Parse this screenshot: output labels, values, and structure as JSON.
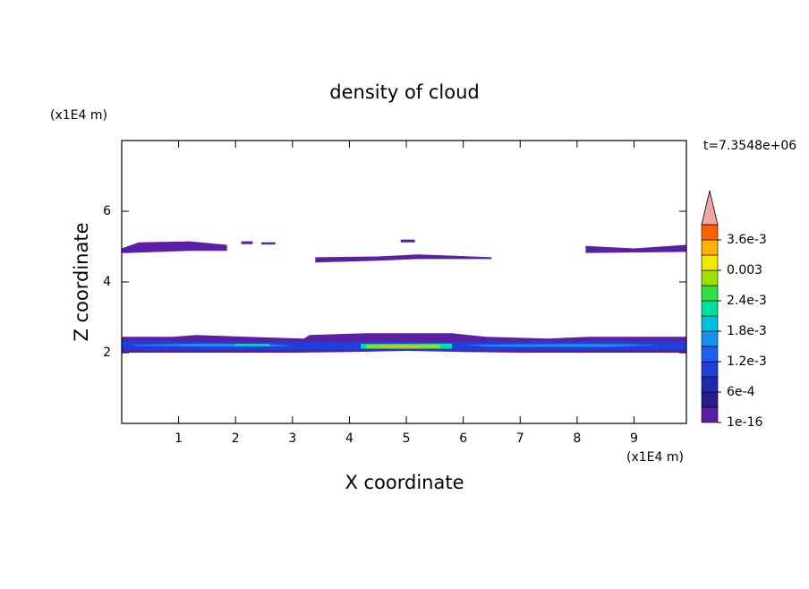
{
  "chart_data": {
    "type": "contour",
    "title": "density of cloud",
    "xlabel": "X coordinate",
    "ylabel": "Z coordinate",
    "xunit": "(x1E4 m)",
    "yunit": "(x1E4 m)",
    "annotation": "t=7.3548e+06",
    "xlim": [
      0,
      9.92
    ],
    "ylim": [
      0,
      8
    ],
    "xticks": [
      1,
      2,
      3,
      4,
      5,
      6,
      7,
      8,
      9
    ],
    "yticks": [
      2,
      4,
      6
    ],
    "colorbar": {
      "levels": [
        1e-16,
        0.0003,
        0.0006,
        0.0009,
        0.0012,
        0.0015,
        0.0018,
        0.0021,
        0.0024,
        0.0027,
        0.003,
        0.0033,
        0.0036,
        0.0039
      ],
      "colors": [
        "#5b1fa6",
        "#2a1a8c",
        "#1c2ab0",
        "#1f3fd8",
        "#2060f0",
        "#1890f0",
        "#00c0e0",
        "#00e0a0",
        "#30e040",
        "#a0e000",
        "#f0e800",
        "#ffb000",
        "#ff6000"
      ],
      "extend_color": "#f4a6a6",
      "ticks": [
        1e-16,
        {
          "value": 0.0006,
          "label": "6e-4"
        },
        {
          "value": 0.0012,
          "label": "1.2e-3"
        },
        {
          "value": 0.0018,
          "label": "1.8e-3"
        },
        {
          "value": 0.0024,
          "label": "2.4e-3"
        },
        0.003,
        {
          "value": 0.0036,
          "label": "3.6e-3"
        }
      ]
    },
    "regions": [
      {
        "level": 1e-16,
        "x": [
          0,
          0.9,
          1.3,
          2.2,
          3.2,
          3.3,
          4.3,
          5.8,
          6.4,
          7.5,
          8.2,
          9.92,
          9.92,
          7,
          6,
          5,
          4,
          3,
          2,
          1,
          0
        ],
        "z": [
          2.45,
          2.45,
          2.5,
          2.45,
          2.4,
          2.5,
          2.55,
          2.55,
          2.45,
          2.4,
          2.45,
          2.45,
          2.0,
          2.0,
          2.02,
          2.05,
          2.02,
          2.0,
          2.0,
          2.0,
          2.0
        ]
      },
      {
        "level": 0.0009,
        "x": [
          0,
          2,
          3.5,
          4.2,
          5.8,
          7,
          9.92,
          9.92,
          7,
          5.8,
          4.2,
          2,
          0
        ],
        "z": [
          2.35,
          2.3,
          2.32,
          2.3,
          2.3,
          2.32,
          2.33,
          2.08,
          2.08,
          2.07,
          2.07,
          2.08,
          2.08
        ]
      },
      {
        "level": 0.0015,
        "x": [
          0.2,
          1.5,
          2.5,
          3,
          2.5,
          1.5,
          0.2
        ],
        "z": [
          2.22,
          2.26,
          2.24,
          2.2,
          2.17,
          2.17,
          2.2
        ]
      },
      {
        "level": 0.0015,
        "x": [
          6,
          8.2,
          9.5,
          8.5,
          6.5
        ],
        "z": [
          2.22,
          2.25,
          2.22,
          2.16,
          2.17
        ]
      },
      {
        "level": 0.0021,
        "x": [
          2,
          2.6,
          2.6,
          2
        ],
        "z": [
          2.25,
          2.25,
          2.19,
          2.19
        ]
      },
      {
        "level": 0.0021,
        "x": [
          4.2,
          5.8,
          5.8,
          4.2
        ],
        "z": [
          2.25,
          2.26,
          2.11,
          2.11
        ]
      },
      {
        "level": 0.0027,
        "x": [
          4.3,
          5.6,
          5.6,
          4.3
        ],
        "z": [
          2.22,
          2.22,
          2.13,
          2.13
        ]
      },
      {
        "level": 0.0033,
        "x": [
          4.6,
          5.3,
          5.3,
          4.6
        ],
        "z": [
          2.2,
          2.2,
          2.15,
          2.15
        ]
      },
      {
        "level": 1e-16,
        "x": [
          0,
          0.3,
          1.2,
          1.85,
          1.85,
          1.2,
          0.1,
          0
        ],
        "z": [
          4.95,
          5.12,
          5.15,
          5.05,
          4.88,
          4.88,
          4.82,
          4.82
        ]
      },
      {
        "level": 1e-16,
        "x": [
          2.1,
          2.3,
          2.3,
          2.1
        ],
        "z": [
          5.15,
          5.15,
          5.07,
          5.07
        ]
      },
      {
        "level": 1e-16,
        "x": [
          2.45,
          2.7,
          2.7,
          2.45
        ],
        "z": [
          5.12,
          5.12,
          5.06,
          5.06
        ]
      },
      {
        "level": 1e-16,
        "x": [
          3.4,
          4.5,
          5.2,
          6.5,
          6.5,
          5.2,
          4.5,
          3.4
        ],
        "z": [
          4.7,
          4.72,
          4.78,
          4.7,
          4.65,
          4.65,
          4.6,
          4.55
        ]
      },
      {
        "level": 1e-16,
        "x": [
          4.9,
          5.15,
          5.15,
          4.9
        ],
        "z": [
          5.2,
          5.2,
          5.12,
          5.12
        ]
      },
      {
        "level": 1e-16,
        "x": [
          8.15,
          9,
          9.92,
          9.92,
          8.15
        ],
        "z": [
          5.02,
          4.95,
          5.05,
          4.85,
          4.82
        ]
      }
    ]
  }
}
